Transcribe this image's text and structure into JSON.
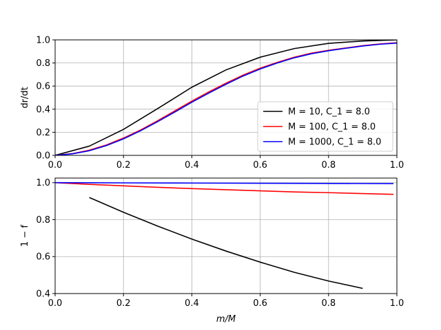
{
  "chart_data": [
    {
      "type": "line",
      "ylabel": "dr/dt",
      "xlim": [
        0,
        1
      ],
      "ylim": [
        0,
        1
      ],
      "xticks": [
        "0.0",
        "0.2",
        "0.4",
        "0.6",
        "0.8",
        "1.0"
      ],
      "yticks": [
        "0.0",
        "0.2",
        "0.4",
        "0.6",
        "0.8",
        "1.0"
      ],
      "grid": true,
      "legend_position": "lower-right",
      "series": [
        {
          "name": "M = 10, C_1 = 8.0",
          "color": "#000000",
          "x": [
            0,
            0.1,
            0.2,
            0.3,
            0.4,
            0.5,
            0.6,
            0.7,
            0.8,
            0.9,
            1.0
          ],
          "y": [
            0.0,
            0.08,
            0.225,
            0.405,
            0.59,
            0.74,
            0.85,
            0.925,
            0.97,
            0.99,
            1.0
          ]
        },
        {
          "name": "M = 100, C_1 = 8.0",
          "color": "#ff0000",
          "x": [
            0,
            0.05,
            0.1,
            0.15,
            0.2,
            0.25,
            0.3,
            0.35,
            0.4,
            0.45,
            0.5,
            0.55,
            0.6,
            0.65,
            0.7,
            0.75,
            0.8,
            0.85,
            0.9,
            0.95,
            1.0
          ],
          "y": [
            0.0,
            0.015,
            0.045,
            0.09,
            0.15,
            0.22,
            0.3,
            0.385,
            0.47,
            0.55,
            0.625,
            0.695,
            0.755,
            0.805,
            0.85,
            0.885,
            0.91,
            0.93,
            0.95,
            0.965,
            0.975
          ]
        },
        {
          "name": "M = 1000, C_1 = 8.0",
          "color": "#0000ff",
          "x": [
            0,
            0.05,
            0.1,
            0.15,
            0.2,
            0.25,
            0.3,
            0.35,
            0.4,
            0.45,
            0.5,
            0.55,
            0.6,
            0.65,
            0.7,
            0.75,
            0.8,
            0.85,
            0.9,
            0.95,
            1.0
          ],
          "y": [
            0.0,
            0.013,
            0.04,
            0.085,
            0.143,
            0.213,
            0.292,
            0.375,
            0.46,
            0.54,
            0.616,
            0.687,
            0.748,
            0.8,
            0.845,
            0.88,
            0.906,
            0.927,
            0.947,
            0.962,
            0.972
          ]
        }
      ]
    },
    {
      "type": "line",
      "xlabel": "m/M",
      "ylabel": "1 − f",
      "xlim": [
        0,
        1
      ],
      "ylim": [
        0.4,
        1.025
      ],
      "xticks": [
        "0.0",
        "0.2",
        "0.4",
        "0.6",
        "0.8",
        "1.0"
      ],
      "yticks": [
        "0.4",
        "0.6",
        "0.8",
        "1.0"
      ],
      "grid": true,
      "series": [
        {
          "color": "#000000",
          "x": [
            0.1,
            0.2,
            0.3,
            0.4,
            0.5,
            0.6,
            0.7,
            0.8,
            0.9
          ],
          "y": [
            0.92,
            0.84,
            0.765,
            0.695,
            0.63,
            0.57,
            0.515,
            0.468,
            0.428
          ]
        },
        {
          "color": "#ff0000",
          "x": [
            0,
            0.1,
            0.2,
            0.3,
            0.4,
            0.5,
            0.6,
            0.7,
            0.8,
            0.9,
            0.99
          ],
          "y": [
            1.0,
            0.991,
            0.983,
            0.975,
            0.968,
            0.962,
            0.956,
            0.95,
            0.946,
            0.941,
            0.937
          ]
        },
        {
          "color": "#0000ff",
          "x": [
            0,
            0.2,
            0.4,
            0.6,
            0.8,
            0.99
          ],
          "y": [
            1.0,
            0.999,
            0.998,
            0.997,
            0.996,
            0.995
          ]
        }
      ]
    }
  ]
}
